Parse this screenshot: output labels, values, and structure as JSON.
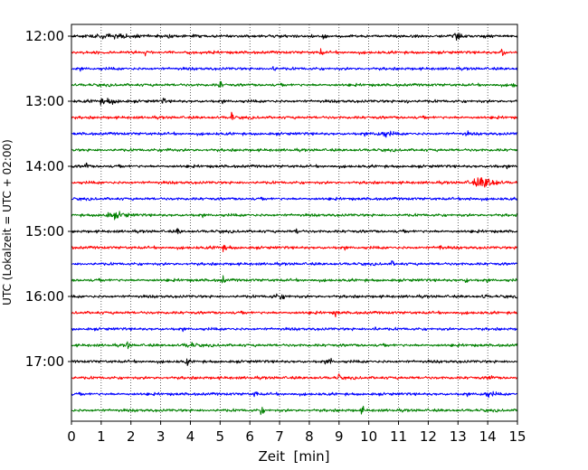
{
  "chart_data": {
    "type": "line",
    "title": "",
    "xlabel": "Zeit  [min]",
    "ylabel": "UTC (Lokalzeit = UTC + 02:00)",
    "xlim": [
      0,
      15
    ],
    "x_ticks": [
      "0",
      "1",
      "2",
      "3",
      "4",
      "5",
      "6",
      "7",
      "8",
      "9",
      "10",
      "11",
      "12",
      "13",
      "14",
      "15"
    ],
    "y_ticks": [
      "12:00",
      "13:00",
      "14:00",
      "15:00",
      "16:00",
      "17:00"
    ],
    "grid_x": true,
    "grid_style": "dotted",
    "trace_interval_min": 15,
    "color_cycle": [
      "#000000",
      "#ff0000",
      "#0000ff",
      "#008000"
    ],
    "traces": [
      {
        "start": "12:00",
        "color": "#000000"
      },
      {
        "start": "12:15",
        "color": "#ff0000"
      },
      {
        "start": "12:30",
        "color": "#0000ff"
      },
      {
        "start": "12:45",
        "color": "#008000"
      },
      {
        "start": "13:00",
        "color": "#000000"
      },
      {
        "start": "13:15",
        "color": "#ff0000"
      },
      {
        "start": "13:30",
        "color": "#0000ff"
      },
      {
        "start": "13:45",
        "color": "#008000"
      },
      {
        "start": "14:00",
        "color": "#000000"
      },
      {
        "start": "14:15",
        "color": "#ff0000"
      },
      {
        "start": "14:30",
        "color": "#0000ff"
      },
      {
        "start": "14:45",
        "color": "#008000"
      },
      {
        "start": "15:00",
        "color": "#000000"
      },
      {
        "start": "15:15",
        "color": "#ff0000"
      },
      {
        "start": "15:30",
        "color": "#0000ff"
      },
      {
        "start": "15:45",
        "color": "#008000"
      },
      {
        "start": "16:00",
        "color": "#000000"
      },
      {
        "start": "16:15",
        "color": "#ff0000"
      },
      {
        "start": "16:30",
        "color": "#0000ff"
      },
      {
        "start": "16:45",
        "color": "#008000"
      },
      {
        "start": "17:00",
        "color": "#000000"
      },
      {
        "start": "17:15",
        "color": "#ff0000"
      },
      {
        "start": "17:30",
        "color": "#0000ff"
      },
      {
        "start": "17:45",
        "color": "#008000"
      }
    ]
  }
}
